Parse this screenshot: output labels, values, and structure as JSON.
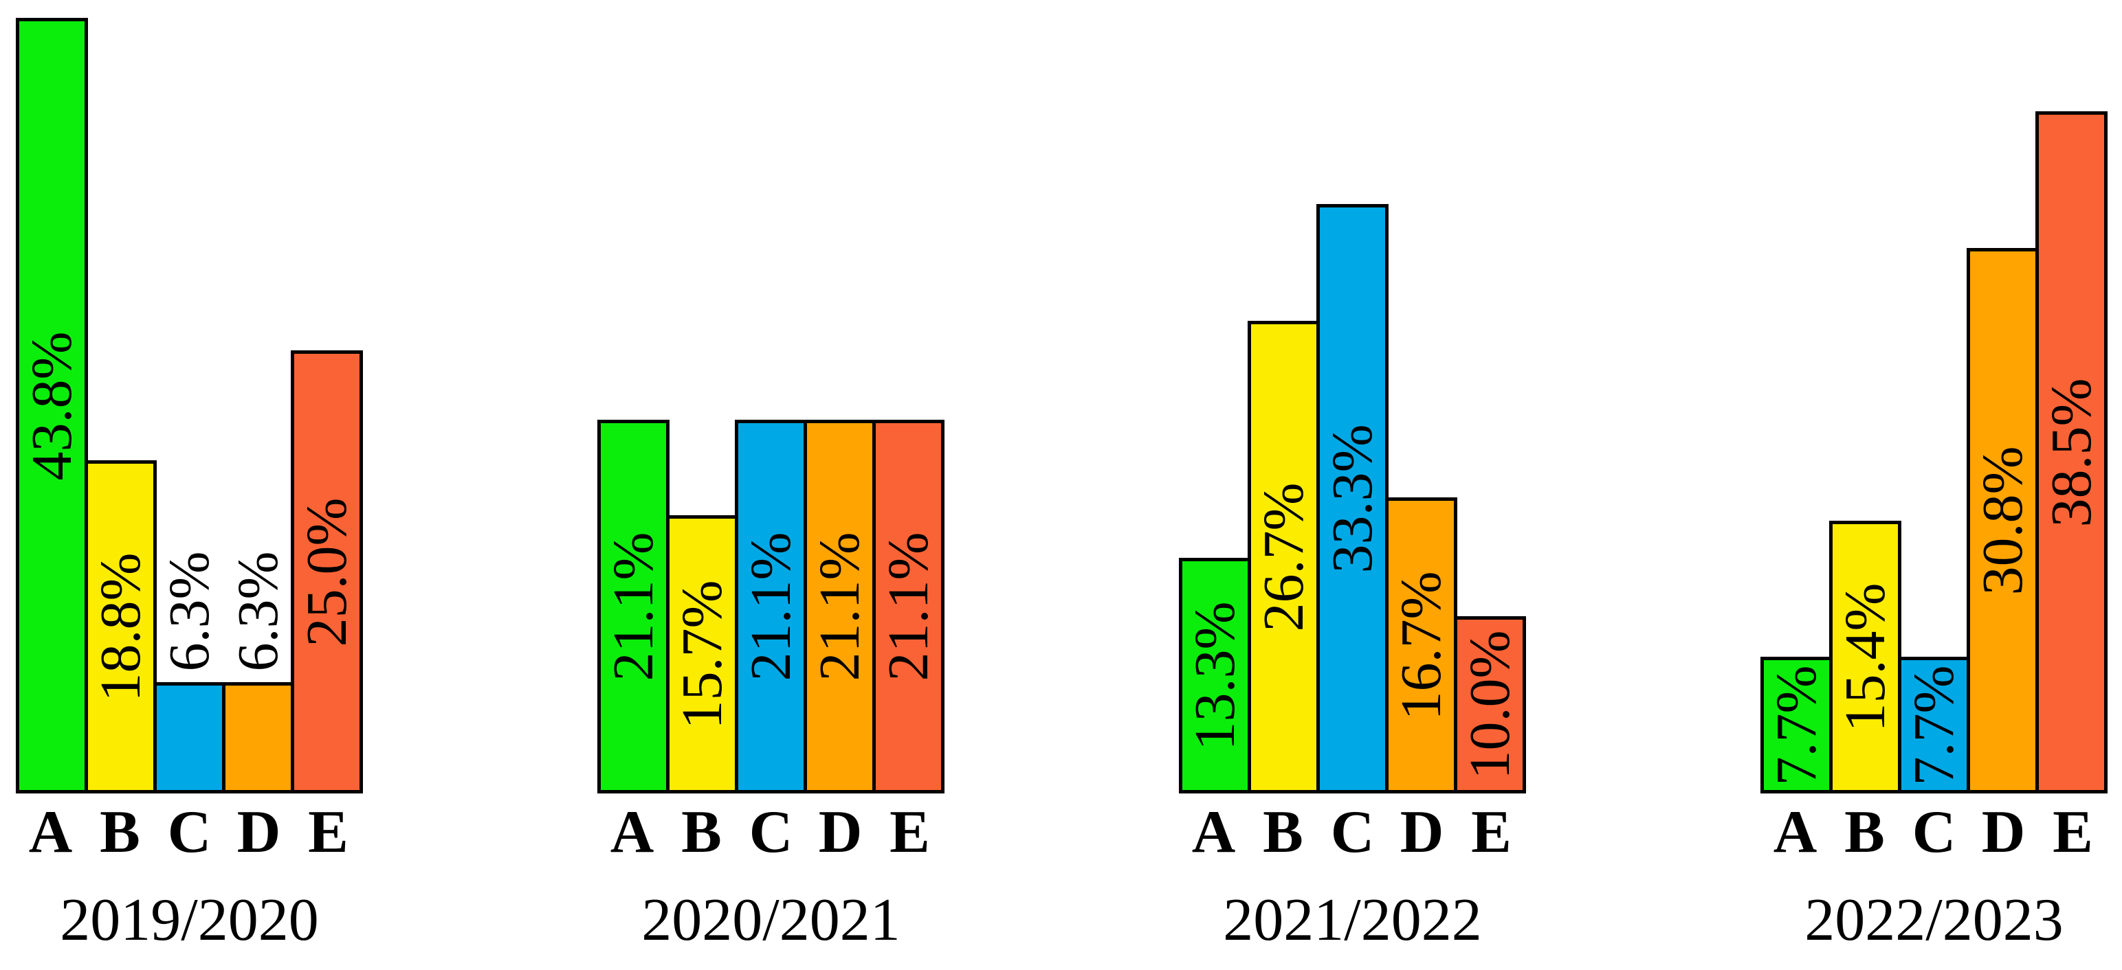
{
  "chart_data": {
    "type": "bar",
    "title": "",
    "categories": [
      "A",
      "B",
      "C",
      "D",
      "E"
    ],
    "bar_colors": [
      "#0BEE0B",
      "#FCEC00",
      "#00A9E6",
      "#FFA400",
      "#FA6335"
    ],
    "unit": "%",
    "axes_shown": false,
    "grid": false,
    "value_label_rotation_deg": 90,
    "groups": [
      {
        "year": "2019/2020",
        "values": [
          43.8,
          18.8,
          6.3,
          6.3,
          25.0
        ],
        "value_labels": [
          "43.8%",
          "18.8%",
          "6.3%",
          "6.3%",
          "25.0%"
        ],
        "label_outside": [
          false,
          false,
          true,
          true,
          false
        ]
      },
      {
        "year": "2020/2021",
        "values": [
          21.1,
          15.7,
          21.1,
          21.1,
          21.1
        ],
        "value_labels": [
          "21.1%",
          "15.7%",
          "21.1%",
          "21.1%",
          "21.1%"
        ],
        "label_outside": [
          false,
          false,
          false,
          false,
          false
        ]
      },
      {
        "year": "2021/2022",
        "values": [
          13.3,
          26.7,
          33.3,
          16.7,
          10.0
        ],
        "value_labels": [
          "13.3%",
          "26.7%",
          "33.3%",
          "16.7%",
          "10.0%"
        ],
        "label_outside": [
          false,
          false,
          false,
          false,
          false
        ]
      },
      {
        "year": "2022/2023",
        "values": [
          7.7,
          15.4,
          7.7,
          30.8,
          38.5
        ],
        "value_labels": [
          "7.7%",
          "15.4%",
          "7.7%",
          "30.8%",
          "38.5%"
        ],
        "label_outside": [
          false,
          false,
          false,
          false,
          false
        ]
      }
    ]
  }
}
